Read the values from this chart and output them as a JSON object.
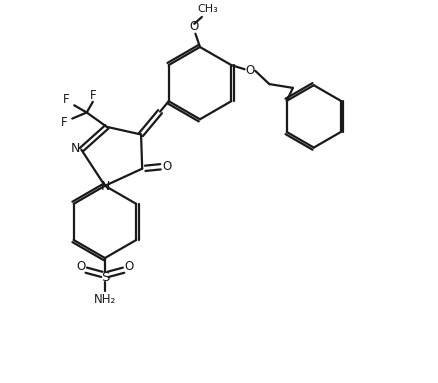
{
  "bg_color": "#ffffff",
  "line_color": "#1a1a1a",
  "line_width": 1.6,
  "font_size": 8.5,
  "fig_width": 4.38,
  "fig_height": 3.83,
  "xlim": [
    0,
    11
  ],
  "ylim": [
    0,
    10
  ]
}
